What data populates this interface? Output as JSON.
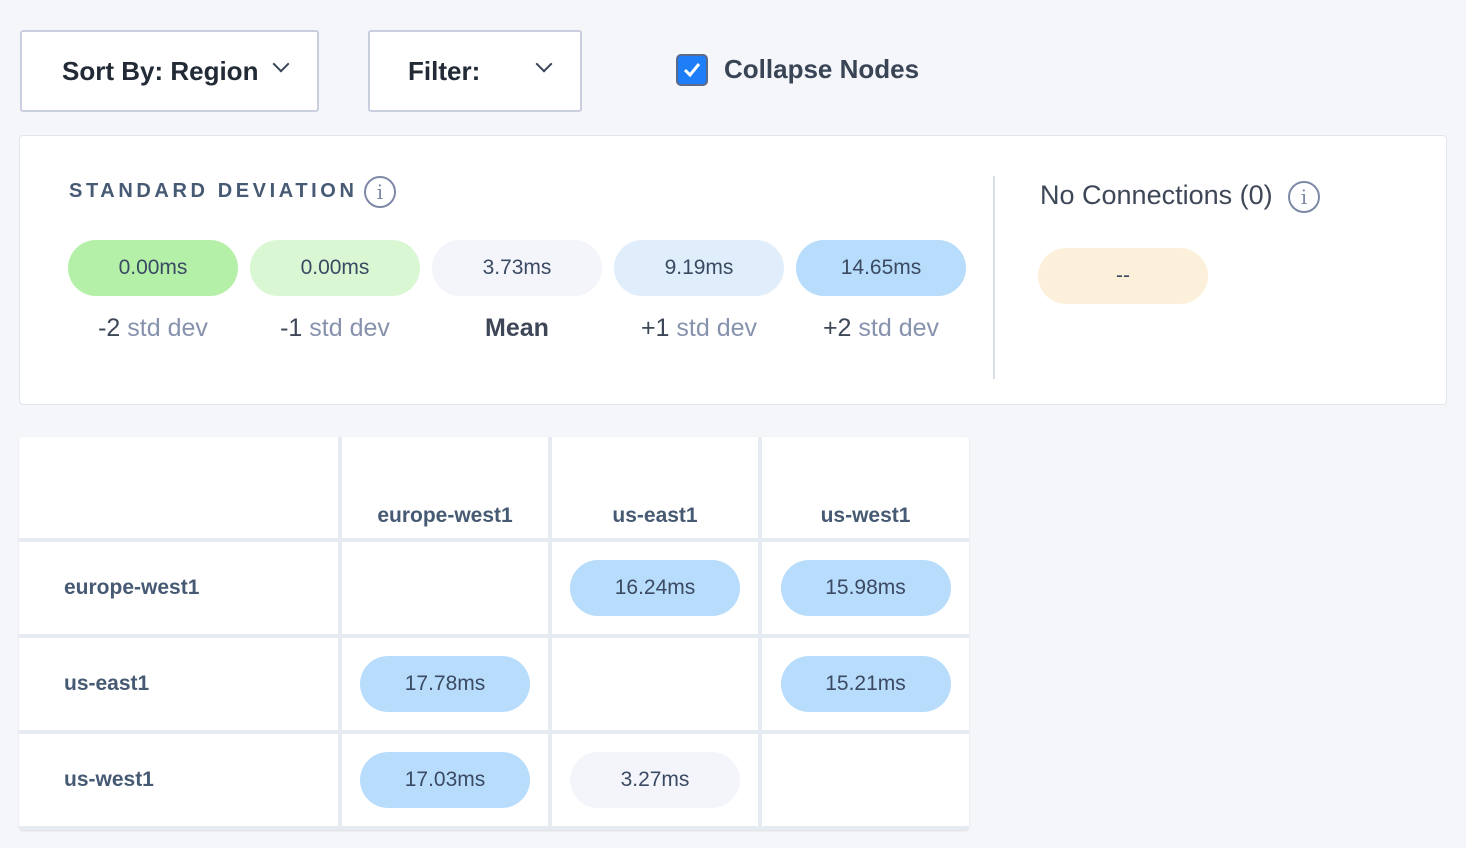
{
  "toolbar": {
    "sort_label": "Sort By: Region",
    "filter_label": "Filter:",
    "collapse_label": "Collapse Nodes",
    "collapse_checked": true
  },
  "std": {
    "title": "STANDARD DEVIATION",
    "pills": [
      {
        "value": "0.00ms",
        "sign": "-2",
        "unit": "std dev",
        "color": "#b4f0a8"
      },
      {
        "value": "0.00ms",
        "sign": "-1",
        "unit": "std dev",
        "color": "#daf7d4"
      },
      {
        "value": "3.73ms",
        "sign": "Mean",
        "unit": "",
        "color": "#f3f5fa"
      },
      {
        "value": "9.19ms",
        "sign": "+1",
        "unit": "std dev",
        "color": "#e0eefb"
      },
      {
        "value": "14.65ms",
        "sign": "+2",
        "unit": "std dev",
        "color": "#b8dcfb"
      }
    ]
  },
  "no_connections": {
    "title": "No Connections (0)",
    "value": "--",
    "color": "#fdf0da"
  },
  "matrix": {
    "columns": [
      "europe-west1",
      "us-east1",
      "us-west1"
    ],
    "rows": [
      {
        "label": "europe-west1",
        "cells": [
          "",
          "16.24ms",
          "15.98ms"
        ]
      },
      {
        "label": "us-east1",
        "cells": [
          "17.78ms",
          "",
          "15.21ms"
        ]
      },
      {
        "label": "us-west1",
        "cells": [
          "17.03ms",
          "3.27ms",
          ""
        ]
      }
    ]
  }
}
